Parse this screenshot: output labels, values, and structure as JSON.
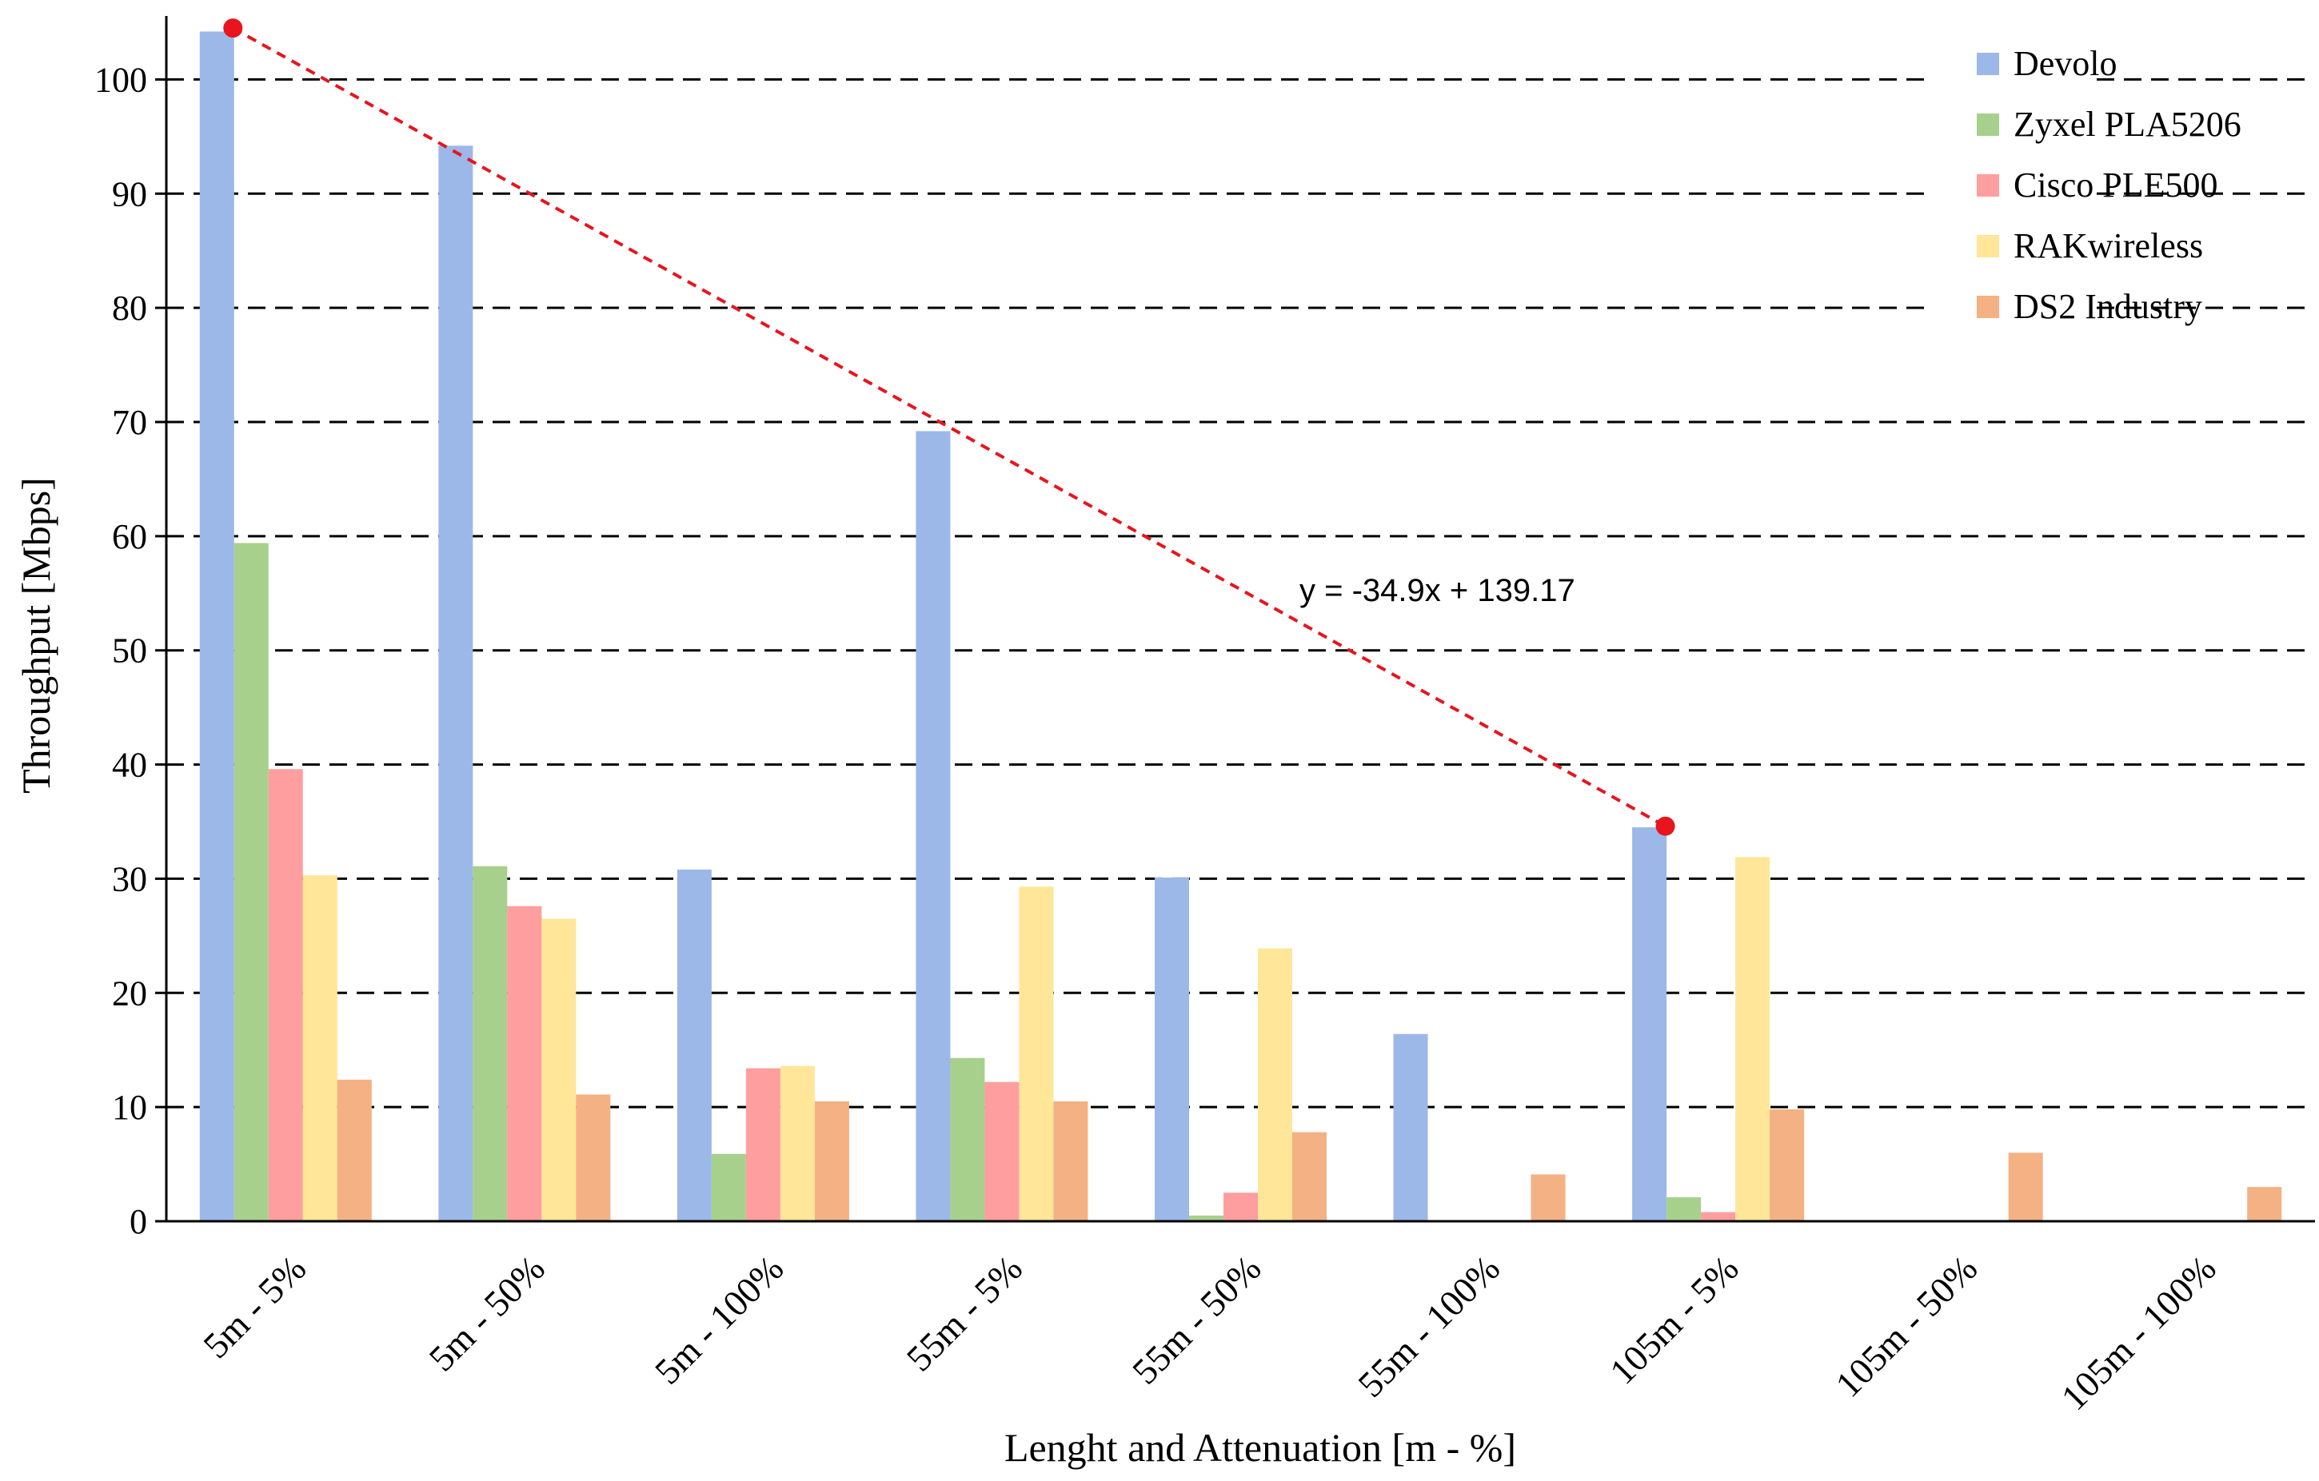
{
  "chart_data": {
    "type": "bar",
    "categories": [
      "5m - 5%",
      "5m - 50%",
      "5m - 100%",
      "55m - 5%",
      "55m - 50%",
      "55m - 100%",
      "105m - 5%",
      "105m - 50%",
      "105m - 100%"
    ],
    "series": [
      {
        "name": "Devolo",
        "color": "#9cb8e8",
        "values": [
          104.2,
          94.2,
          30.8,
          69.2,
          30.1,
          16.4,
          34.5,
          0,
          0
        ]
      },
      {
        "name": "Zyxel PLA5206",
        "color": "#a8d08d",
        "values": [
          59.4,
          31.1,
          5.9,
          14.3,
          0.5,
          0,
          2.1,
          0,
          0
        ]
      },
      {
        "name": "Cisco PLE500",
        "color": "#ff9e9e",
        "values": [
          39.6,
          27.6,
          13.4,
          12.2,
          2.5,
          0,
          0.8,
          0,
          0
        ]
      },
      {
        "name": "RAKwireless",
        "color": "#ffe699",
        "values": [
          30.3,
          26.5,
          13.6,
          29.3,
          23.9,
          0,
          31.9,
          0,
          0
        ]
      },
      {
        "name": "DS2 Industry",
        "color": "#f4b183",
        "values": [
          12.4,
          11.1,
          10.5,
          10.5,
          7.8,
          4.1,
          9.8,
          6.0,
          3.0
        ]
      }
    ],
    "xlabel": "Lenght and Attenuation [m - %]",
    "ylabel": "Throughput [Mbps]",
    "ylim": [
      0,
      105
    ],
    "yticks": [
      0,
      10,
      20,
      30,
      40,
      50,
      60,
      70,
      80,
      90,
      100
    ],
    "grid": "horizontal-dashed",
    "legend_position": "top-right",
    "trendline": {
      "label": "y = -34.9x + 139.17",
      "color": "#e8141e",
      "start": {
        "category": "5m - 5%",
        "y": 104.5
      },
      "end": {
        "category": "105m - 5%",
        "y": 34.6
      }
    }
  }
}
